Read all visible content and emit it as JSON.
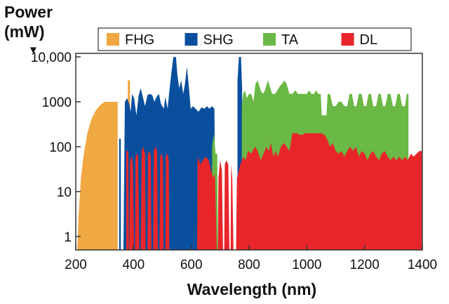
{
  "chart_data": {
    "type": "area",
    "ylabel_line1": "Power",
    "ylabel_line2": "(mW)",
    "ylabel_arrow": "▼",
    "xlabel": "Wavelength (nm)",
    "xlim": [
      200,
      1400
    ],
    "ylim": [
      0.5,
      12000
    ],
    "yscale": "log",
    "x_ticks": [
      "200",
      "400",
      "600",
      "800",
      "1000",
      "1200",
      "1400"
    ],
    "x_tick_values": [
      200,
      400,
      600,
      800,
      1000,
      1200,
      1400
    ],
    "y_ticks": [
      "1",
      "10",
      "100",
      "1000",
      "10,000"
    ],
    "y_tick_values": [
      1,
      10,
      100,
      1000,
      10000
    ],
    "legend_position": "top",
    "series": [
      {
        "name": "FHG",
        "color": "#f0a843",
        "points": [
          [
            205,
            0.5
          ],
          [
            210,
            3
          ],
          [
            218,
            20
          ],
          [
            228,
            70
          ],
          [
            240,
            200
          ],
          [
            255,
            420
          ],
          [
            270,
            650
          ],
          [
            285,
            850
          ],
          [
            300,
            1000
          ],
          [
            345,
            1000
          ],
          [
            345,
            0.5
          ],
          [
            380,
            0.5
          ],
          [
            380,
            3000
          ],
          [
            388,
            3000
          ],
          [
            388,
            0.5
          ]
        ]
      },
      {
        "name": "SHG",
        "color": "#0a4f9e",
        "points": [
          [
            350,
            0.5
          ],
          [
            350,
            150
          ],
          [
            356,
            150
          ],
          [
            356,
            0.5
          ],
          [
            365,
            0.5
          ],
          [
            370,
            1000
          ],
          [
            378,
            1200
          ],
          [
            385,
            900
          ],
          [
            390,
            600
          ],
          [
            395,
            1500
          ],
          [
            402,
            1200
          ],
          [
            410,
            500
          ],
          [
            418,
            1400
          ],
          [
            425,
            2000
          ],
          [
            432,
            1300
          ],
          [
            440,
            800
          ],
          [
            448,
            1400
          ],
          [
            456,
            1500
          ],
          [
            465,
            1400
          ],
          [
            472,
            1000
          ],
          [
            480,
            1300
          ],
          [
            488,
            1500
          ],
          [
            495,
            900
          ],
          [
            505,
            700
          ],
          [
            510,
            1300
          ],
          [
            518,
            700
          ],
          [
            525,
            2000
          ],
          [
            532,
            5000
          ],
          [
            538,
            10000
          ],
          [
            547,
            10000
          ],
          [
            552,
            4000
          ],
          [
            558,
            2000
          ],
          [
            565,
            3000
          ],
          [
            572,
            1500
          ],
          [
            578,
            2500
          ],
          [
            585,
            6000
          ],
          [
            592,
            2000
          ],
          [
            598,
            700
          ],
          [
            606,
            800
          ],
          [
            615,
            700
          ],
          [
            625,
            600
          ],
          [
            635,
            750
          ],
          [
            645,
            700
          ],
          [
            655,
            800
          ],
          [
            662,
            700
          ],
          [
            672,
            800
          ],
          [
            680,
            700
          ],
          [
            685,
            0.5
          ],
          [
            760,
            0.5
          ],
          [
            760,
            3000
          ],
          [
            765,
            10000
          ],
          [
            772,
            10000
          ],
          [
            776,
            2000
          ],
          [
            780,
            0.5
          ]
        ]
      },
      {
        "name": "TA",
        "color": "#6ab845",
        "points": [
          [
            672,
            0.5
          ],
          [
            672,
            100
          ],
          [
            678,
            200
          ],
          [
            684,
            70
          ],
          [
            690,
            70
          ],
          [
            692,
            0.5
          ],
          [
            775,
            0.5
          ],
          [
            775,
            800
          ],
          [
            780,
            1500
          ],
          [
            786,
            1800
          ],
          [
            792,
            1200
          ],
          [
            800,
            1500
          ],
          [
            808,
            1500
          ],
          [
            815,
            1000
          ],
          [
            822,
            2500
          ],
          [
            830,
            3000
          ],
          [
            840,
            1800
          ],
          [
            848,
            1500
          ],
          [
            855,
            1800
          ],
          [
            865,
            3000
          ],
          [
            872,
            2200
          ],
          [
            880,
            1500
          ],
          [
            890,
            1500
          ],
          [
            898,
            1800
          ],
          [
            906,
            2200
          ],
          [
            914,
            2500
          ],
          [
            922,
            3000
          ],
          [
            930,
            2500
          ],
          [
            940,
            1500
          ],
          [
            950,
            1500
          ],
          [
            960,
            1800
          ],
          [
            970,
            1500
          ],
          [
            980,
            1500
          ],
          [
            990,
            1500
          ],
          [
            1000,
            1500
          ],
          [
            1008,
            1800
          ],
          [
            1016,
            1500
          ],
          [
            1025,
            1500
          ],
          [
            1032,
            1800
          ],
          [
            1040,
            1500
          ],
          [
            1048,
            1500
          ],
          [
            1052,
            500
          ],
          [
            1060,
            500
          ],
          [
            1068,
            500
          ],
          [
            1072,
            1500
          ],
          [
            1080,
            1500
          ],
          [
            1090,
            800
          ],
          [
            1100,
            800
          ],
          [
            1110,
            1000
          ],
          [
            1120,
            1000
          ],
          [
            1130,
            800
          ],
          [
            1140,
            800
          ],
          [
            1148,
            1500
          ],
          [
            1156,
            1500
          ],
          [
            1164,
            800
          ],
          [
            1172,
            800
          ],
          [
            1180,
            1500
          ],
          [
            1190,
            1500
          ],
          [
            1198,
            800
          ],
          [
            1206,
            800
          ],
          [
            1214,
            1500
          ],
          [
            1222,
            1500
          ],
          [
            1230,
            800
          ],
          [
            1240,
            800
          ],
          [
            1248,
            1500
          ],
          [
            1256,
            1500
          ],
          [
            1264,
            800
          ],
          [
            1272,
            800
          ],
          [
            1280,
            1500
          ],
          [
            1290,
            1500
          ],
          [
            1298,
            800
          ],
          [
            1306,
            800
          ],
          [
            1314,
            1500
          ],
          [
            1322,
            1500
          ],
          [
            1330,
            800
          ],
          [
            1340,
            800
          ],
          [
            1346,
            1500
          ],
          [
            1352,
            1500
          ],
          [
            1352,
            0.5
          ]
        ]
      },
      {
        "name": "DL",
        "color": "#e8262a",
        "points": [
          [
            375,
            0.5
          ],
          [
            375,
            80
          ],
          [
            382,
            80
          ],
          [
            384,
            0.5
          ],
          [
            385,
            0.5
          ],
          [
            388,
            50
          ],
          [
            393,
            60
          ],
          [
            398,
            40
          ],
          [
            402,
            0.5
          ],
          [
            405,
            0.5
          ],
          [
            407,
            60
          ],
          [
            412,
            70
          ],
          [
            416,
            60
          ],
          [
            420,
            0.5
          ],
          [
            425,
            0.5
          ],
          [
            428,
            80
          ],
          [
            433,
            100
          ],
          [
            440,
            70
          ],
          [
            442,
            0.5
          ],
          [
            448,
            0.5
          ],
          [
            450,
            70
          ],
          [
            455,
            80
          ],
          [
            460,
            60
          ],
          [
            462,
            0.5
          ],
          [
            468,
            0.5
          ],
          [
            470,
            80
          ],
          [
            476,
            100
          ],
          [
            482,
            80
          ],
          [
            484,
            0.5
          ],
          [
            490,
            0.5
          ],
          [
            492,
            60
          ],
          [
            498,
            70
          ],
          [
            502,
            50
          ],
          [
            504,
            0.5
          ],
          [
            510,
            0.5
          ],
          [
            512,
            60
          ],
          [
            518,
            70
          ],
          [
            522,
            50
          ],
          [
            524,
            0.5
          ],
          [
            620,
            0.5
          ],
          [
            622,
            60
          ],
          [
            632,
            40
          ],
          [
            640,
            50
          ],
          [
            650,
            60
          ],
          [
            660,
            50
          ],
          [
            668,
            30
          ],
          [
            676,
            20
          ],
          [
            682,
            25
          ],
          [
            688,
            0.5
          ],
          [
            692,
            0.5
          ],
          [
            694,
            20
          ],
          [
            700,
            50
          ],
          [
            706,
            30
          ],
          [
            710,
            0.5
          ],
          [
            714,
            0.5
          ],
          [
            716,
            40
          ],
          [
            722,
            50
          ],
          [
            728,
            40
          ],
          [
            732,
            0.5
          ],
          [
            736,
            0.5
          ],
          [
            738,
            40
          ],
          [
            742,
            20
          ],
          [
            746,
            0.5
          ],
          [
            755,
            0.5
          ],
          [
            758,
            20
          ],
          [
            770,
            40
          ],
          [
            780,
            60
          ],
          [
            788,
            50
          ],
          [
            796,
            80
          ],
          [
            808,
            70
          ],
          [
            820,
            100
          ],
          [
            830,
            80
          ],
          [
            840,
            50
          ],
          [
            850,
            70
          ],
          [
            860,
            100
          ],
          [
            868,
            80
          ],
          [
            876,
            120
          ],
          [
            884,
            60
          ],
          [
            892,
            80
          ],
          [
            900,
            60
          ],
          [
            910,
            100
          ],
          [
            920,
            120
          ],
          [
            930,
            100
          ],
          [
            940,
            80
          ],
          [
            950,
            200
          ],
          [
            965,
            200
          ],
          [
            980,
            180
          ],
          [
            995,
            200
          ],
          [
            1010,
            200
          ],
          [
            1030,
            200
          ],
          [
            1050,
            200
          ],
          [
            1062,
            180
          ],
          [
            1070,
            150
          ],
          [
            1080,
            100
          ],
          [
            1090,
            120
          ],
          [
            1100,
            80
          ],
          [
            1110,
            70
          ],
          [
            1120,
            80
          ],
          [
            1130,
            60
          ],
          [
            1140,
            80
          ],
          [
            1150,
            100
          ],
          [
            1160,
            80
          ],
          [
            1170,
            100
          ],
          [
            1180,
            60
          ],
          [
            1190,
            80
          ],
          [
            1200,
            70
          ],
          [
            1210,
            50
          ],
          [
            1220,
            70
          ],
          [
            1230,
            80
          ],
          [
            1240,
            60
          ],
          [
            1250,
            50
          ],
          [
            1260,
            70
          ],
          [
            1270,
            80
          ],
          [
            1280,
            60
          ],
          [
            1290,
            50
          ],
          [
            1300,
            60
          ],
          [
            1310,
            50
          ],
          [
            1320,
            60
          ],
          [
            1330,
            50
          ],
          [
            1340,
            60
          ],
          [
            1350,
            50
          ],
          [
            1360,
            70
          ],
          [
            1370,
            60
          ],
          [
            1380,
            70
          ],
          [
            1390,
            80
          ],
          [
            1398,
            80
          ],
          [
            1398,
            0.5
          ]
        ]
      }
    ]
  }
}
